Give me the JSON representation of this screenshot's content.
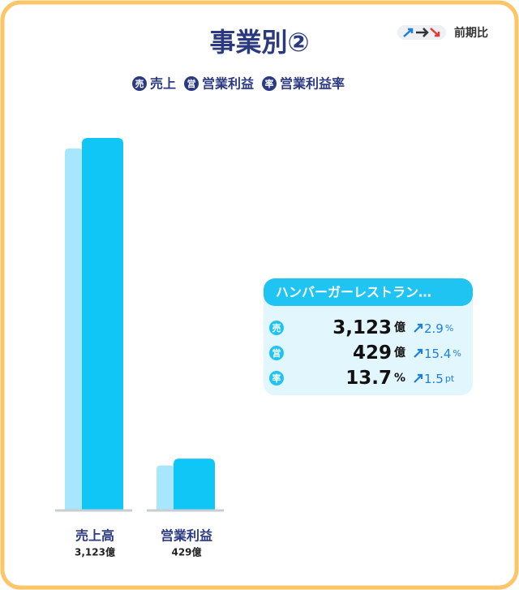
{
  "title": "事業別②",
  "comparison_label": "前期比",
  "legend": [
    {
      "badge": "売",
      "label": "売上"
    },
    {
      "badge": "営",
      "label": "営業利益"
    },
    {
      "badge": "率",
      "label": "営業利益率"
    }
  ],
  "chart_data": {
    "type": "bar",
    "categories": [
      "売上高",
      "営業利益"
    ],
    "series": [
      {
        "color": "#a8e7fb",
        "values": [
          3035,
          372
        ]
      },
      {
        "color": "#0fc6f7",
        "values": [
          3123,
          429
        ],
        "value_labels": [
          "3,123億",
          "429億"
        ]
      }
    ]
  },
  "card": {
    "title": "ハンバーガーレストラン…",
    "rows": [
      {
        "badge": "売",
        "value": "3,123",
        "unit": "億",
        "change": 2.9,
        "change_unit": "%"
      },
      {
        "badge": "営",
        "value": 429,
        "unit": "億",
        "change": 15.4,
        "change_unit": "%"
      },
      {
        "badge": "率",
        "value": 13.7,
        "unit": "%",
        "change": 1.5,
        "change_unit": "pt"
      }
    ]
  }
}
